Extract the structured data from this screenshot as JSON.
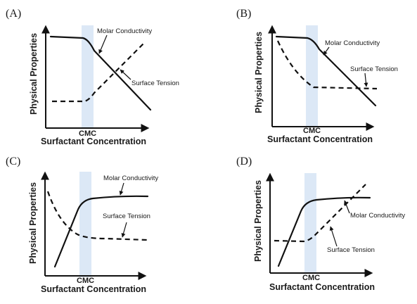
{
  "colors": {
    "cmc_band": "#dce8f6",
    "line": "#111111"
  },
  "panels": [
    {
      "label": "(A)",
      "ylabel": "Physical Properties",
      "cmc": "CMC",
      "xlabel": "Surfactant Concentration",
      "curves": {
        "solid": "Molar Conductivity",
        "dashed": "Surface Tension"
      }
    },
    {
      "label": "(B)",
      "ylabel": "Physical Properties",
      "cmc": "CMC",
      "xlabel": "Surfactant Concentration",
      "curves": {
        "solid": "Molar Conductivity",
        "dashed": "Surface Tension"
      }
    },
    {
      "label": "(C)",
      "ylabel": "Physical Properties",
      "cmc": "CMC",
      "xlabel": "Surfactant Concentration",
      "curves": {
        "solid": "Molar Conductivity",
        "dashed": "Surface Tension"
      }
    },
    {
      "label": "(D)",
      "ylabel": "Physical Properties",
      "cmc": "CMC",
      "xlabel": "Surfactant Concentration",
      "curves": {
        "solid": "Molar Conductivity",
        "dashed": "Surface Tension"
      }
    }
  ]
}
